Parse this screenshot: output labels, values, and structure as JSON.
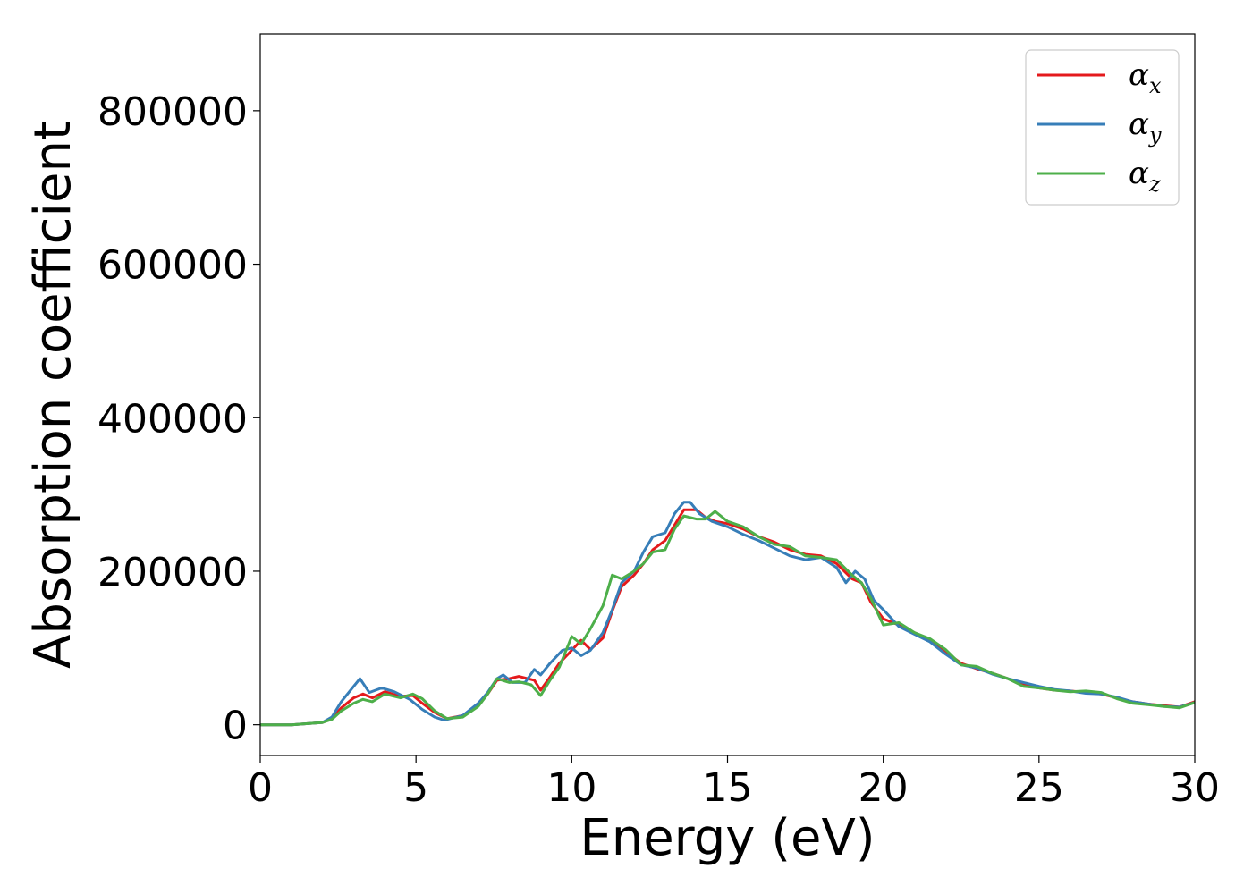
{
  "chart_data": {
    "type": "line",
    "xlabel": "Energy (eV)",
    "ylabel": "Absorption coefficient",
    "xlim": [
      0,
      30
    ],
    "ylim": [
      -40000,
      900000
    ],
    "xticks": [
      0,
      5,
      10,
      15,
      20,
      25,
      30
    ],
    "yticks": [
      0,
      200000,
      400000,
      600000,
      800000
    ],
    "grid": false,
    "legend_position": "top-right",
    "series": [
      {
        "name": "αx",
        "symbol": "α",
        "subscript": "x",
        "color": "#e41a1c",
        "x": [
          0,
          1,
          2,
          2.3,
          2.6,
          3.0,
          3.3,
          3.6,
          4.0,
          4.5,
          4.9,
          5.2,
          5.6,
          6.0,
          6.5,
          7.0,
          7.3,
          7.6,
          8.0,
          8.3,
          8.8,
          9.0,
          9.3,
          9.6,
          10.0,
          10.3,
          10.6,
          11.0,
          11.3,
          11.6,
          12.0,
          12.3,
          12.6,
          13.0,
          13.3,
          13.6,
          14.0,
          14.3,
          14.6,
          15.0,
          15.5,
          16.0,
          16.5,
          17.0,
          17.5,
          18.0,
          18.5,
          19.0,
          19.3,
          19.6,
          20.0,
          20.5,
          21.0,
          21.5,
          22.0,
          22.5,
          23.0,
          23.5,
          24.0,
          24.5,
          25.0,
          25.5,
          26.0,
          26.5,
          27.0,
          27.5,
          28.0,
          28.5,
          29.0,
          29.5,
          30.0
        ],
        "values": [
          0,
          0,
          3000,
          8000,
          22000,
          35000,
          40000,
          35000,
          43000,
          37000,
          38000,
          28000,
          16000,
          8000,
          12000,
          25000,
          40000,
          58000,
          60000,
          63000,
          58000,
          45000,
          62000,
          80000,
          97000,
          110000,
          98000,
          113000,
          148000,
          180000,
          195000,
          210000,
          228000,
          240000,
          260000,
          280000,
          280000,
          270000,
          265000,
          262000,
          255000,
          245000,
          238000,
          228000,
          222000,
          220000,
          210000,
          190000,
          185000,
          160000,
          138000,
          130000,
          120000,
          110000,
          95000,
          80000,
          73000,
          67000,
          60000,
          52000,
          48000,
          45000,
          44000,
          42000,
          40000,
          35000,
          30000,
          27000,
          25000,
          23000,
          30000
        ]
      },
      {
        "name": "αy",
        "symbol": "α",
        "subscript": "y",
        "color": "#377eb8",
        "x": [
          0,
          1,
          2,
          2.3,
          2.6,
          3.0,
          3.2,
          3.5,
          3.9,
          4.3,
          4.8,
          5.2,
          5.6,
          5.9,
          6.5,
          7.0,
          7.3,
          7.6,
          7.8,
          8.1,
          8.5,
          8.8,
          9.0,
          9.3,
          9.7,
          10.0,
          10.3,
          10.6,
          11.0,
          11.3,
          11.6,
          12.0,
          12.3,
          12.6,
          13.0,
          13.3,
          13.6,
          13.8,
          14.1,
          14.5,
          15.0,
          15.5,
          16.0,
          16.5,
          17.0,
          17.5,
          18.0,
          18.5,
          18.8,
          19.1,
          19.4,
          19.7,
          20.0,
          20.5,
          21.0,
          21.5,
          22.0,
          22.5,
          23.0,
          23.5,
          24.0,
          24.5,
          25.0,
          25.5,
          26.0,
          26.5,
          27.0,
          27.5,
          28.0,
          28.5,
          29.0,
          29.5,
          30.0
        ],
        "values": [
          0,
          0,
          3000,
          10000,
          30000,
          50000,
          60000,
          42000,
          48000,
          43000,
          33000,
          20000,
          10000,
          6000,
          12000,
          28000,
          42000,
          60000,
          65000,
          55000,
          55000,
          72000,
          65000,
          80000,
          97000,
          100000,
          90000,
          97000,
          120000,
          150000,
          185000,
          200000,
          225000,
          245000,
          250000,
          275000,
          290000,
          290000,
          275000,
          265000,
          258000,
          248000,
          240000,
          230000,
          220000,
          215000,
          218000,
          205000,
          185000,
          200000,
          190000,
          162000,
          150000,
          128000,
          118000,
          108000,
          92000,
          78000,
          74000,
          66000,
          60000,
          55000,
          50000,
          46000,
          44000,
          41000,
          40000,
          36000,
          30000,
          27000,
          24000,
          23000,
          29000
        ]
      },
      {
        "name": "αz",
        "symbol": "α",
        "subscript": "z",
        "color": "#4daf4a",
        "x": [
          0,
          1,
          2,
          2.3,
          2.6,
          3.0,
          3.3,
          3.6,
          4.0,
          4.5,
          4.9,
          5.2,
          5.6,
          6.0,
          6.5,
          7.0,
          7.3,
          7.6,
          8.0,
          8.3,
          8.7,
          9.0,
          9.3,
          9.6,
          10.0,
          10.3,
          10.6,
          11.0,
          11.3,
          11.6,
          12.0,
          12.3,
          12.6,
          13.0,
          13.3,
          13.6,
          14.0,
          14.3,
          14.6,
          15.0,
          15.5,
          16.0,
          16.5,
          17.0,
          17.5,
          18.0,
          18.5,
          19.0,
          19.3,
          19.6,
          20.0,
          20.5,
          21.0,
          21.5,
          22.0,
          22.5,
          23.0,
          23.5,
          24.0,
          24.5,
          25.0,
          25.5,
          26.0,
          26.5,
          27.0,
          27.5,
          28.0,
          28.5,
          29.0,
          29.5,
          30.0
        ],
        "values": [
          0,
          0,
          3000,
          7000,
          18000,
          28000,
          33000,
          30000,
          40000,
          35000,
          40000,
          34000,
          18000,
          8000,
          10000,
          24000,
          40000,
          60000,
          55000,
          56000,
          52000,
          38000,
          58000,
          75000,
          115000,
          105000,
          125000,
          155000,
          195000,
          190000,
          200000,
          210000,
          225000,
          228000,
          255000,
          272000,
          268000,
          268000,
          278000,
          265000,
          258000,
          245000,
          235000,
          232000,
          220000,
          218000,
          215000,
          195000,
          185000,
          165000,
          130000,
          133000,
          120000,
          112000,
          98000,
          78000,
          76000,
          67000,
          60000,
          50000,
          48000,
          45000,
          43000,
          44000,
          42000,
          34000,
          28000,
          26000,
          24000,
          22000,
          29000
        ]
      }
    ]
  }
}
